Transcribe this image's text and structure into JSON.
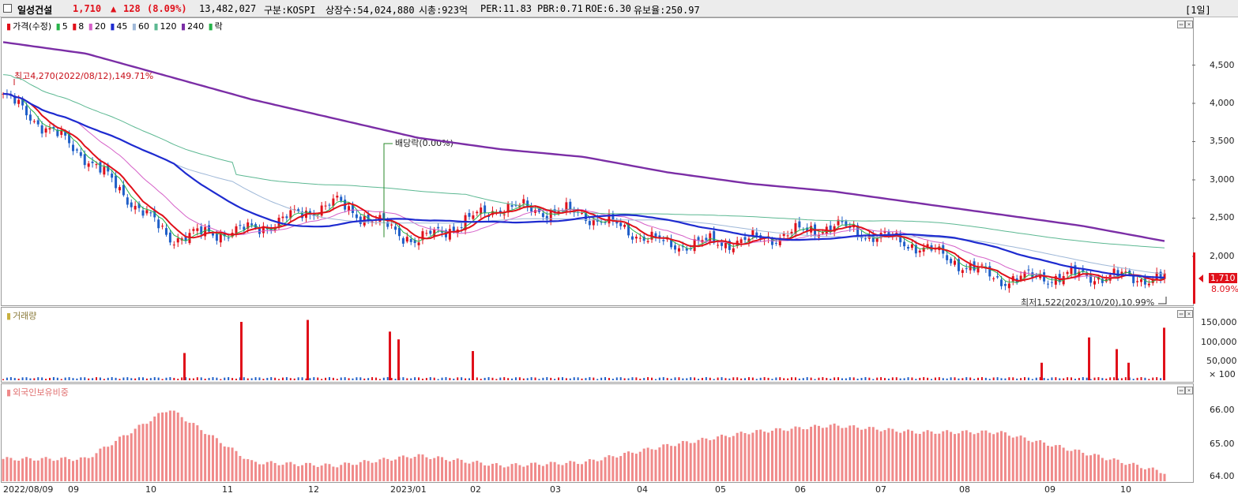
{
  "header": {
    "stock_name": "일성건설",
    "price": "1,710",
    "change_arrow": "▲",
    "change": "128",
    "change_pct": "(8.09%)",
    "volume": "13,482,027",
    "market": "구분:KOSPI",
    "shares": "상장수:54,024,880",
    "mcap": "시총:923억",
    "per": "PER:11.83",
    "pbr": "PBR:0.71",
    "roe": "ROE:6.30",
    "reserve": "유보율:250.97",
    "period": "[1일]"
  },
  "colors": {
    "up": "#e0101a",
    "down": "#1f5fc8",
    "ma5": "#27b34a",
    "ma8": "#e0101a",
    "ma20": "#d560c8",
    "ma45": "#1e2bd0",
    "ma60": "#9fb8d8",
    "ma120": "#5cb892",
    "ma240": "#7b2ea6",
    "foreign": "#f08a8a"
  },
  "price_panel": {
    "legend": {
      "price": "가격(수정)",
      "ma5": "5",
      "ma8": "8",
      "ma20": "20",
      "ma45": "45",
      "ma60": "60",
      "ma120": "120",
      "ma240": "240",
      "fall": "락"
    },
    "high_label": "최고4,270(2022/08/12),149.71%",
    "low_label": "최저1,522(2023/10/20),10.99%",
    "dividend_label": "배당락(0.00%)",
    "last_price_tag": "1,710",
    "last_change_tag": "8.09%",
    "y_ticks": [
      "4,500",
      "4,000",
      "3,500",
      "3,000",
      "2,500",
      "2,000"
    ]
  },
  "volume_panel": {
    "legend": "거래량",
    "y_ticks": [
      "150,000",
      "100,000",
      "50,000",
      "× 100"
    ]
  },
  "foreign_panel": {
    "legend": "외국인보유비중",
    "y_ticks": [
      "66.00",
      "65.00",
      "64.00"
    ]
  },
  "x_axis": [
    "2022/08/09",
    "09",
    "10",
    "11",
    "12",
    "2023/01",
    "02",
    "03",
    "04",
    "05",
    "06",
    "07",
    "08",
    "09",
    "10"
  ],
  "chart_data": {
    "type": "candlestick",
    "price_series_approx": {
      "x": [
        "2022/08",
        "2022/09",
        "2022/10",
        "2022/11",
        "2022/12",
        "2023/01",
        "2023/02",
        "2023/03",
        "2023/04",
        "2023/05",
        "2023/06",
        "2023/07",
        "2023/08",
        "2023/09",
        "2023/10"
      ],
      "close": [
        4100,
        3300,
        2250,
        2350,
        2700,
        2200,
        2650,
        2550,
        2150,
        2200,
        2400,
        2150,
        1700,
        1750,
        1710
      ]
    },
    "ma240_approx": [
      4800,
      4650,
      4350,
      4050,
      3800,
      3550,
      3400,
      3300,
      3100,
      2950,
      2850,
      2700,
      2550,
      2400,
      2200
    ],
    "volume_x100_approx": {
      "spikes": [
        {
          "x": "2022/10",
          "value": 70000
        },
        {
          "x": "2022/11",
          "value": 150000
        },
        {
          "x": "2022/12",
          "value": 155000
        },
        {
          "x": "2022/12",
          "value": 125000
        },
        {
          "x": "2023/01",
          "value": 70000
        },
        {
          "x": "2023/09",
          "value": 45000
        },
        {
          "x": "2023/10",
          "value": 110000
        },
        {
          "x": "2023/10",
          "value": 135000
        }
      ]
    },
    "foreign_ratio_approx": {
      "x": [
        "2022/08",
        "2022/09",
        "2022/10",
        "2022/11",
        "2022/12",
        "2023/01",
        "2023/02",
        "2023/03",
        "2023/04",
        "2023/05",
        "2023/06",
        "2023/07",
        "2023/08",
        "2023/09",
        "2023/10"
      ],
      "values": [
        64.5,
        64.5,
        66.0,
        64.4,
        64.3,
        64.6,
        64.3,
        64.4,
        64.9,
        65.3,
        65.5,
        65.3,
        65.3,
        64.7,
        64.1
      ]
    }
  }
}
